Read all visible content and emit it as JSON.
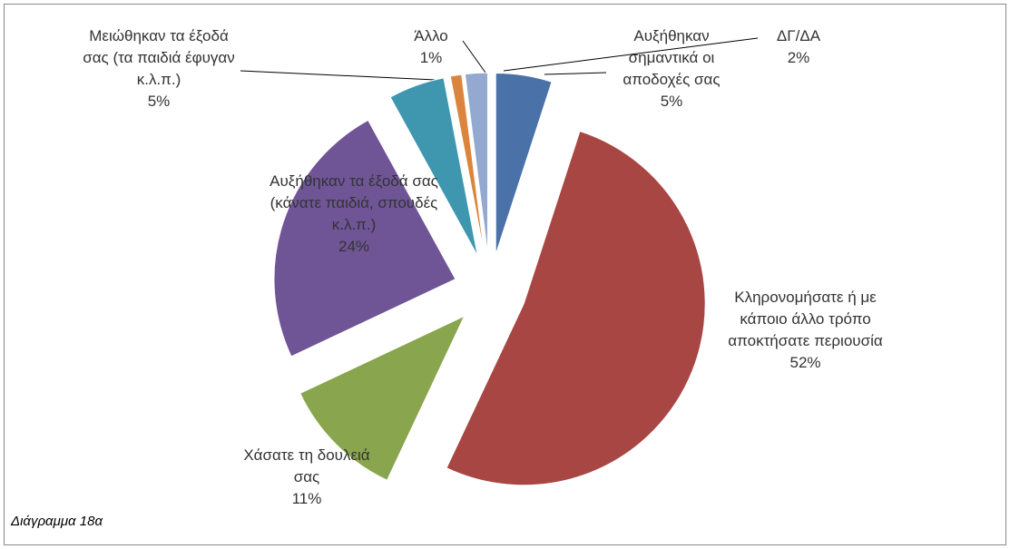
{
  "chart_data": {
    "type": "pie",
    "categories": [
      "Αυξήθηκαν σημαντικά οι αποδοχές σας",
      "Κληρονομήσατε ή με κάποιο άλλο τρόπο αποκτήσατε περιουσία",
      "Χάσατε τη δουλειά σας",
      "Αυξήθηκαν τα έξοδά σας (κάνατε παιδιά, σπουδές κ.λ.π.)",
      "Μειώθηκαν τα έξοδά σας (τα παιδιά έφυγαν κ.λ.π.)",
      "Άλλο",
      "ΔΓ/ΔΑ"
    ],
    "values": [
      5,
      52,
      11,
      24,
      5,
      1,
      2
    ],
    "value_labels": [
      "5%",
      "52%",
      "11%",
      "24%",
      "5%",
      "1%",
      "2%"
    ],
    "colors": [
      "#4a72a8",
      "#a84643",
      "#89a54e",
      "#6f5596",
      "#3e97af",
      "#db843d",
      "#93a9cf"
    ],
    "caption": "Διάγραμμα 18α"
  }
}
